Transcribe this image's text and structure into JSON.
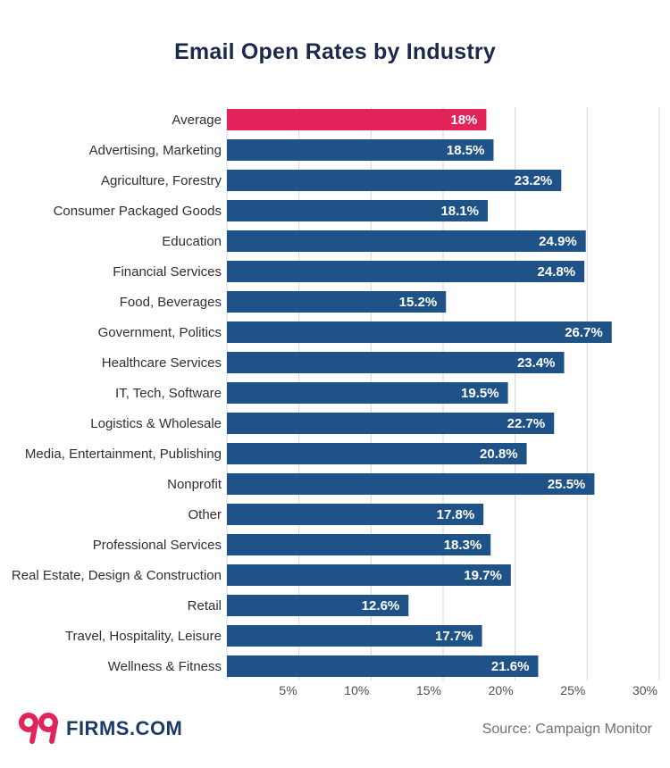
{
  "chart_data": {
    "type": "bar",
    "orientation": "horizontal",
    "title": "Email Open Rates by Industry",
    "categories": [
      "Average",
      "Advertising, Marketing",
      "Agriculture, Forestry",
      "Consumer Packaged Goods",
      "Education",
      "Financial Services",
      "Food, Beverages",
      "Government, Politics",
      "Healthcare Services",
      "IT, Tech, Software",
      "Logistics & Wholesale",
      "Media, Entertainment, Publishing",
      "Nonprofit",
      "Other",
      "Professional Services",
      "Real Estate, Design & Construction",
      "Retail",
      "Travel, Hospitality, Leisure",
      "Wellness & Fitness"
    ],
    "values": [
      18,
      18.5,
      23.2,
      18.1,
      24.9,
      24.8,
      15.2,
      26.7,
      23.4,
      19.5,
      22.7,
      20.8,
      25.5,
      17.8,
      18.3,
      19.7,
      12.6,
      17.7,
      21.6
    ],
    "value_labels": [
      "18%",
      "18.5%",
      "23.2%",
      "18.1%",
      "24.9%",
      "24.8%",
      "15.2%",
      "26.7%",
      "23.4%",
      "19.5%",
      "22.7%",
      "20.8%",
      "25.5%",
      "17.8%",
      "18.3%",
      "19.7%",
      "12.6%",
      "17.7%",
      "21.6%"
    ],
    "xlim": [
      0,
      30
    ],
    "xticks": [
      5,
      10,
      15,
      20,
      25,
      30
    ],
    "xtick_labels": [
      "5%",
      "10%",
      "15%",
      "20%",
      "25%",
      "30%"
    ],
    "grid": true,
    "xlabel": "",
    "ylabel": "",
    "highlight_index": 0,
    "colors": {
      "bar": "#1f5388",
      "highlight": "#e3245b",
      "grid": "#d8d8d8"
    }
  },
  "footer": {
    "logo_mark": "99",
    "logo_text": "FIRMS.COM",
    "logo_color": "#e3245b",
    "source": "Source: Campaign Monitor"
  }
}
